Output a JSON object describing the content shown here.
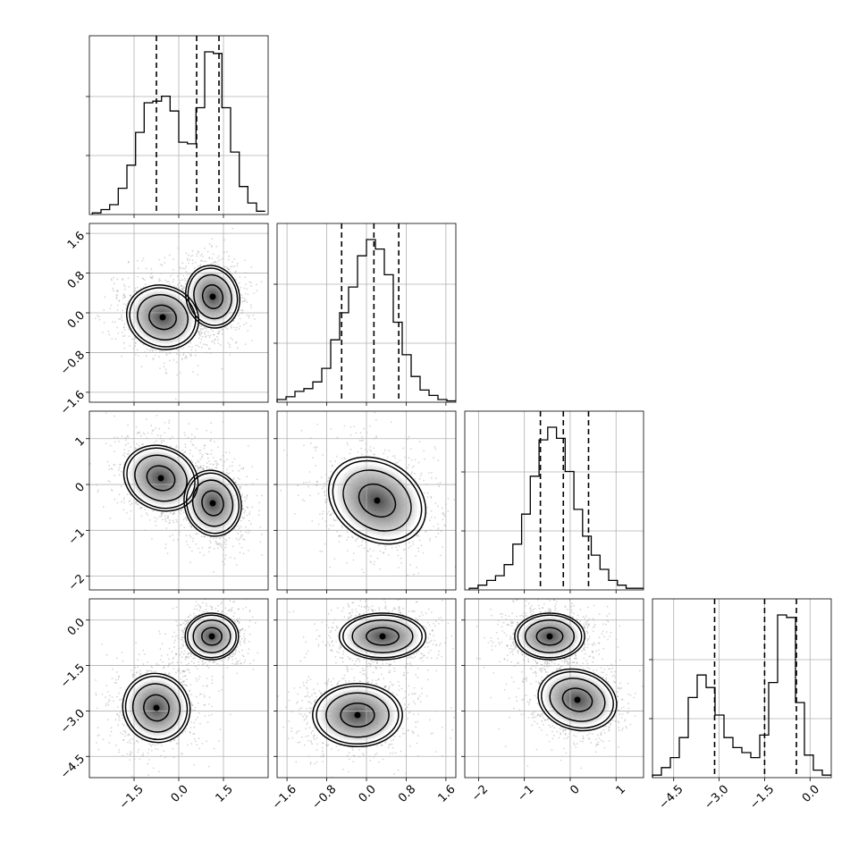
{
  "chart_data": {
    "type": "corner",
    "parameters": 4,
    "axes": [
      {
        "range": [
          -3.0,
          3.0
        ],
        "ticks": [
          -1.5,
          0.0,
          1.5
        ],
        "tick_labels": [
          "−1.5",
          "0.0",
          "1.5"
        ]
      },
      {
        "range": [
          -1.8,
          1.8
        ],
        "ticks": [
          -1.6,
          -0.8,
          0.0,
          0.8,
          1.6
        ],
        "tick_labels": [
          "−1.6",
          "−0.8",
          "0.0",
          "0.8",
          "1.6"
        ]
      },
      {
        "range": [
          -2.3,
          1.6
        ],
        "ticks": [
          -2,
          -1,
          0,
          1
        ],
        "tick_labels": [
          "−2",
          "−1",
          "0",
          "1"
        ]
      },
      {
        "range": [
          -5.2,
          0.7
        ],
        "ticks": [
          -4.5,
          -3.0,
          -1.5,
          0.0
        ],
        "tick_labels": [
          "−4.5",
          "−3.0",
          "−1.5",
          "0.0"
        ]
      }
    ],
    "quantiles": [
      [
        -0.75,
        0.6,
        1.35
      ],
      [
        -0.5,
        0.15,
        0.65
      ],
      [
        -0.65,
        -0.15,
        0.4
      ],
      [
        -3.15,
        -1.5,
        -0.45
      ]
    ],
    "histograms": [
      {
        "range": [
          -2.9,
          2.9
        ],
        "counts": [
          1,
          3,
          6,
          16,
          30,
          50,
          68,
          69,
          72,
          63,
          44,
          43,
          65,
          99,
          98,
          65,
          38,
          17,
          7,
          2
        ]
      },
      {
        "range": [
          -1.8,
          1.8
        ],
        "counts": [
          2,
          4,
          8,
          10,
          15,
          25,
          46,
          66,
          85,
          108,
          120,
          113,
          94,
          59,
          35,
          19,
          9,
          5,
          2,
          1
        ]
      },
      {
        "range": [
          -2.2,
          1.6
        ],
        "counts": [
          1,
          3,
          6,
          9,
          16,
          29,
          48,
          72,
          95,
          103,
          96,
          75,
          51,
          34,
          22,
          13,
          6,
          3,
          1,
          1
        ]
      },
      {
        "range": [
          -5.2,
          0.7
        ],
        "counts": [
          1,
          4,
          8,
          16,
          32,
          41,
          36,
          25,
          16,
          12,
          10,
          8,
          17,
          38,
          65,
          64,
          30,
          9,
          3,
          1
        ]
      }
    ]
  }
}
